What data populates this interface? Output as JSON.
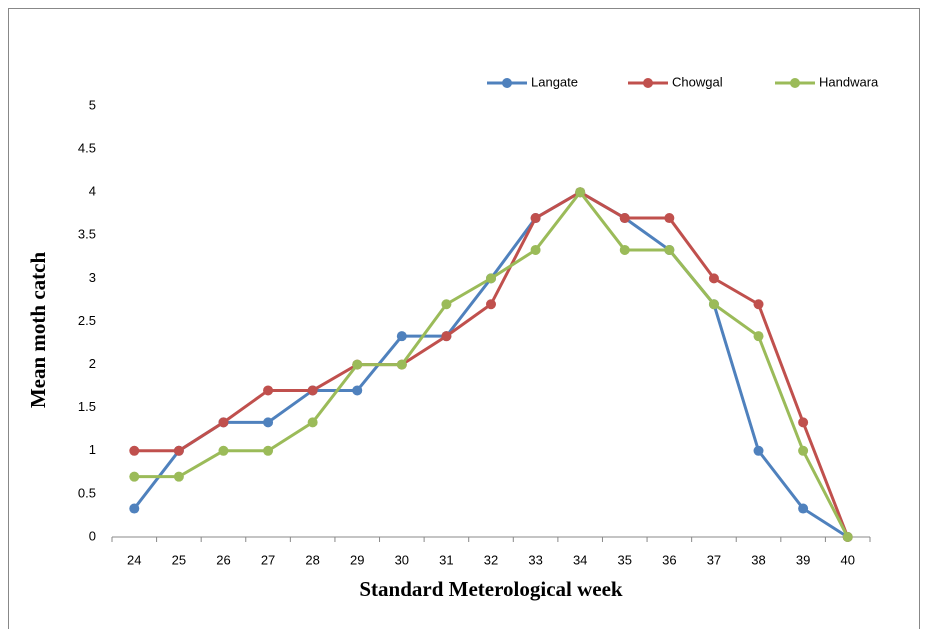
{
  "chart_data": {
    "type": "line",
    "x_label": "Standard Meterological week",
    "y_label": "Mean moth catch",
    "categories": [
      "24",
      "25",
      "26",
      "27",
      "28",
      "29",
      "30",
      "31",
      "32",
      "33",
      "34",
      "35",
      "36",
      "37",
      "38",
      "39",
      "40"
    ],
    "series": [
      {
        "name": "Langate",
        "color": "#4f81bd",
        "values": [
          0.33,
          1,
          1.33,
          1.33,
          1.7,
          1.7,
          2.33,
          2.33,
          3,
          3.7,
          4,
          3.7,
          3.33,
          2.7,
          1,
          0.33,
          0
        ]
      },
      {
        "name": "Chowgal",
        "color": "#c0504d",
        "values": [
          1,
          1,
          1.33,
          1.7,
          1.7,
          2,
          2,
          2.33,
          2.7,
          3.7,
          4,
          3.7,
          3.7,
          3,
          2.7,
          1.33,
          0
        ]
      },
      {
        "name": "Handwara",
        "color": "#9bbb59",
        "values": [
          0.7,
          0.7,
          1,
          1,
          1.33,
          2,
          2,
          2.7,
          3,
          3.33,
          4,
          3.33,
          3.33,
          2.7,
          2.33,
          1,
          0
        ]
      }
    ],
    "ylim": [
      0,
      5
    ],
    "yticks": [
      0,
      0.5,
      1,
      1.5,
      2,
      2.5,
      3,
      3.5,
      4,
      4.5,
      5
    ],
    "grid": false,
    "legend": "top-right"
  }
}
